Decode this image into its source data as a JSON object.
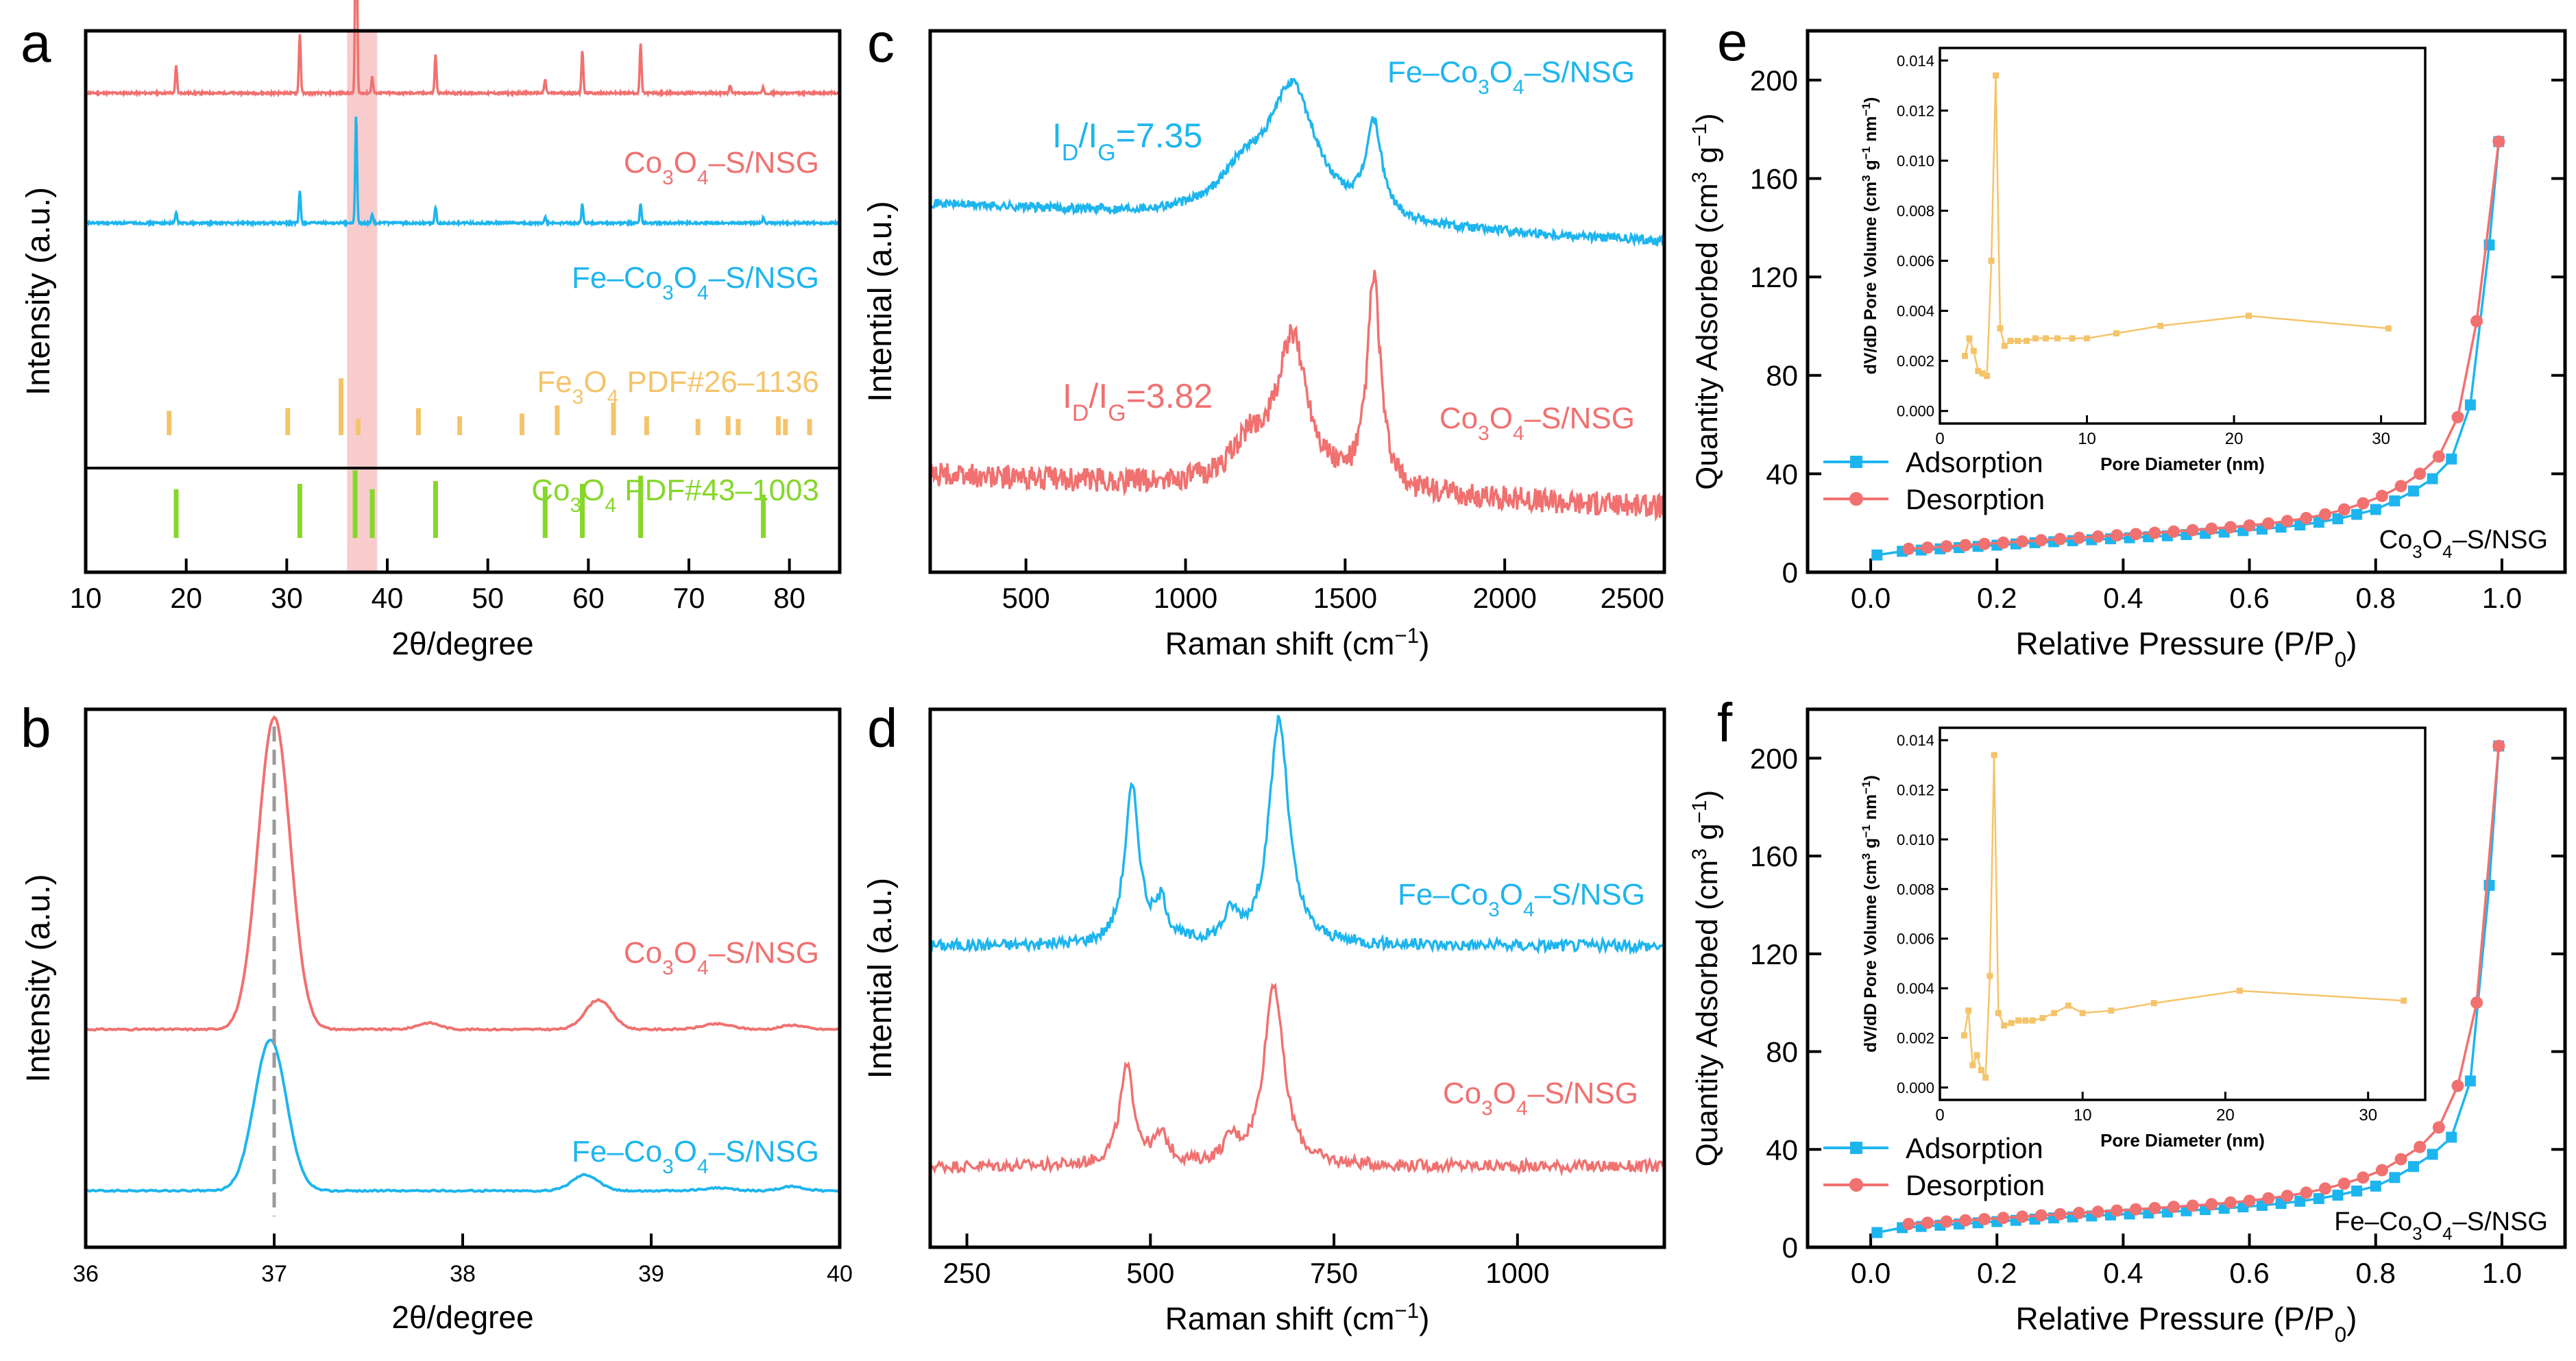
{
  "colors": {
    "red": "#F07170",
    "blue": "#1EB5EE",
    "orange": "#F4C46A",
    "green": "#86D72A",
    "highlight": "#F7C3C3",
    "inset": "#F4C46A",
    "axis": "#000000",
    "dash": "#9A9A9A"
  },
  "chart_data": [
    {
      "panel": "a",
      "type": "line",
      "title": "",
      "xlabel": "2θ/degree",
      "ylabel": "Intensity (a.u.)",
      "xlim": [
        10,
        85
      ],
      "xticks": [
        10,
        20,
        30,
        40,
        50,
        60,
        70,
        80
      ],
      "highlight_range": [
        36,
        39
      ],
      "series": [
        {
          "name": "Co3O4–S/NSG",
          "color": "red",
          "baseline": 0.885,
          "peaks": [
            [
              19.0,
              0.05
            ],
            [
              31.3,
              0.11
            ],
            [
              36.9,
              0.45
            ],
            [
              38.5,
              0.03
            ],
            [
              44.8,
              0.07
            ],
            [
              55.7,
              0.025
            ],
            [
              59.4,
              0.08
            ],
            [
              65.2,
              0.09
            ],
            [
              74.1,
              0.015
            ],
            [
              77.4,
              0.01
            ]
          ],
          "label": {
            "pre": "Co",
            "s1": "3",
            "mid": "O",
            "s2": "4",
            "post": "–S/NSG"
          }
        },
        {
          "name": "Fe–Co3O4–S/NSG",
          "color": "blue",
          "baseline": 0.645,
          "peaks": [
            [
              19.0,
              0.02
            ],
            [
              31.3,
              0.06
            ],
            [
              36.9,
              0.2
            ],
            [
              38.5,
              0.015
            ],
            [
              44.8,
              0.03
            ],
            [
              55.7,
              0.01
            ],
            [
              59.4,
              0.035
            ],
            [
              65.2,
              0.035
            ],
            [
              77.4,
              0.01
            ]
          ]
        }
      ],
      "references": [
        {
          "name": "Fe3O4 PDF#26–1136",
          "color": "orange",
          "sticks": [
            [
              18.3,
              0.045
            ],
            [
              30.1,
              0.05
            ],
            [
              35.4,
              0.105
            ],
            [
              37.1,
              0.03
            ],
            [
              43.1,
              0.05
            ],
            [
              47.2,
              0.035
            ],
            [
              53.4,
              0.04
            ],
            [
              56.9,
              0.055
            ],
            [
              62.5,
              0.06
            ],
            [
              65.8,
              0.035
            ],
            [
              70.9,
              0.03
            ],
            [
              73.9,
              0.035
            ],
            [
              74.9,
              0.03
            ],
            [
              78.9,
              0.035
            ],
            [
              79.6,
              0.03
            ],
            [
              82.0,
              0.03
            ]
          ]
        },
        {
          "name": "Co3O4 PDF#43–1003",
          "color": "green",
          "sticks": [
            [
              19.0,
              0.09
            ],
            [
              31.3,
              0.1
            ],
            [
              36.8,
              0.125
            ],
            [
              38.5,
              0.09
            ],
            [
              44.8,
              0.105
            ],
            [
              55.7,
              0.095
            ],
            [
              59.4,
              0.1
            ],
            [
              65.2,
              0.115
            ],
            [
              77.4,
              0.08
            ]
          ]
        }
      ]
    },
    {
      "panel": "b",
      "type": "line",
      "xlabel": "2θ/degree",
      "ylabel": "Intensity (a.u.)",
      "xlim": [
        36,
        40
      ],
      "xticks": [
        36,
        37,
        38,
        39,
        40
      ],
      "dashed_marker": 37.0,
      "series": [
        {
          "name": "Co3O4–S/NSG",
          "color": "red",
          "baseline": 0.405,
          "peaks": [
            [
              37.0,
              0.58,
              0.085
            ],
            [
              37.82,
              0.012,
              0.06
            ],
            [
              38.72,
              0.055,
              0.07
            ],
            [
              39.35,
              0.01,
              0.08
            ],
            [
              39.75,
              0.008,
              0.06
            ]
          ]
        },
        {
          "name": "Fe–Co3O4–S/NSG",
          "color": "blue",
          "baseline": 0.105,
          "peaks": [
            [
              36.98,
              0.28,
              0.085
            ],
            [
              38.65,
              0.03,
              0.07
            ],
            [
              39.35,
              0.005,
              0.08
            ],
            [
              39.75,
              0.008,
              0.06
            ]
          ]
        }
      ]
    },
    {
      "panel": "c",
      "type": "line",
      "xlabel": "Raman shift (cm−1)",
      "ylabel": "Intential (a.u.)",
      "xlim": [
        200,
        2500
      ],
      "xticks": [
        500,
        1000,
        1500,
        2000,
        2500
      ],
      "series": [
        {
          "name": "Fe–Co3O4–S/NSG",
          "color": "blue",
          "ratio_label": "ID/IG=7.35",
          "baseline_start": 0.68,
          "baseline_end": 0.61,
          "peaks": [
            [
              1335,
              0.24,
              90
            ],
            [
              1590,
              0.17,
              30
            ],
            [
              1180,
              0.07,
              90
            ]
          ]
        },
        {
          "name": "Co3O4–S/NSG",
          "color": "red",
          "ratio_label": "ID/IG=3.82",
          "baseline_start": 0.18,
          "baseline_end": 0.12,
          "peaks": [
            [
              1335,
              0.27,
              60
            ],
            [
              1590,
              0.39,
              25
            ],
            [
              1200,
              0.07,
              70
            ]
          ]
        }
      ]
    },
    {
      "panel": "d",
      "type": "line",
      "xlabel": "Raman shift (cm−1)",
      "ylabel": "Intential (a.u.)",
      "xlim": [
        200,
        1200
      ],
      "xticks": [
        250,
        500,
        750,
        1000
      ],
      "series": [
        {
          "name": "Fe–Co3O4–S/NSG",
          "color": "blue",
          "baseline": 0.56,
          "peaks": [
            [
              475,
              0.29,
              12
            ],
            [
              515,
              0.07,
              10
            ],
            [
              610,
              0.05,
              12
            ],
            [
              675,
              0.42,
              16
            ]
          ]
        },
        {
          "name": "Co3O4–S/NSG",
          "color": "red",
          "baseline": 0.15,
          "peaks": [
            [
              468,
              0.18,
              12
            ],
            [
              515,
              0.05,
              12
            ],
            [
              610,
              0.04,
              12
            ],
            [
              668,
              0.34,
              16
            ]
          ]
        }
      ]
    },
    {
      "panel": "e",
      "type": "line",
      "xlabel": "Relative Pressure (P/P0)",
      "ylabel": "Quantity Adsorbed (cm3 g−1)",
      "xlim": [
        -0.1,
        1.1
      ],
      "ylim": [
        0,
        220
      ],
      "xticks": [
        0.0,
        0.2,
        0.4,
        0.6,
        0.8,
        1.0
      ],
      "yticks": [
        0,
        40,
        80,
        120,
        160,
        200
      ],
      "sample_label": "Co3O4–S/NSG",
      "legend": [
        "Adsorption",
        "Desorption"
      ],
      "series": [
        {
          "name": "Adsorption",
          "color": "blue",
          "x": [
            0.01,
            0.05,
            0.08,
            0.11,
            0.14,
            0.17,
            0.2,
            0.23,
            0.26,
            0.29,
            0.32,
            0.35,
            0.38,
            0.41,
            0.44,
            0.47,
            0.5,
            0.53,
            0.56,
            0.59,
            0.62,
            0.65,
            0.68,
            0.71,
            0.74,
            0.77,
            0.8,
            0.83,
            0.86,
            0.89,
            0.92,
            0.95,
            0.98,
            0.995
          ],
          "y": [
            7,
            8.5,
            9,
            9.5,
            10,
            10.5,
            11,
            11.5,
            12,
            12.4,
            12.8,
            13.2,
            13.6,
            14,
            14.4,
            14.8,
            15.3,
            15.8,
            16.3,
            16.9,
            17.5,
            18.3,
            19.2,
            20.3,
            21.7,
            23.5,
            25.5,
            29,
            33,
            38,
            46,
            68,
            133,
            175
          ]
        },
        {
          "name": "Desorption",
          "color": "red",
          "x": [
            0.995,
            0.96,
            0.93,
            0.9,
            0.87,
            0.84,
            0.81,
            0.78,
            0.75,
            0.72,
            0.69,
            0.66,
            0.63,
            0.6,
            0.57,
            0.54,
            0.51,
            0.48,
            0.45,
            0.42,
            0.39,
            0.36,
            0.33,
            0.3,
            0.27,
            0.24,
            0.21,
            0.18,
            0.15,
            0.12,
            0.09,
            0.06
          ],
          "y": [
            175,
            102,
            63,
            47,
            40,
            35,
            31,
            28,
            25.5,
            23.5,
            22,
            20.8,
            19.8,
            19,
            18.3,
            17.7,
            17.1,
            16.5,
            16,
            15.5,
            15,
            14.5,
            14,
            13.5,
            13,
            12.5,
            12,
            11.5,
            11,
            10.5,
            10,
            9.5
          ]
        }
      ],
      "inset": {
        "xlabel": "Pore Diameter (nm)",
        "ylabel": "dV/dD Pore Volume (cm3 g−1 nm−1)",
        "xlim": [
          0,
          33
        ],
        "ylim": [
          -0.0005,
          0.0145
        ],
        "xticks": [
          0,
          10,
          20,
          30
        ],
        "yticks": [
          0.0,
          0.002,
          0.004,
          0.006,
          0.008,
          0.01,
          0.012,
          0.014
        ],
        "ytick_labels": [
          "0.000",
          "0.002",
          "0.004",
          "0.006",
          "0.008",
          "0.010",
          "0.012",
          "0.014"
        ],
        "x": [
          1.7,
          2.0,
          2.3,
          2.6,
          2.9,
          3.2,
          3.5,
          3.8,
          4.1,
          4.4,
          4.8,
          5.3,
          5.9,
          6.5,
          7.2,
          8.0,
          9.0,
          10.0,
          12.0,
          15.0,
          21.0,
          30.5
        ],
        "y": [
          0.0022,
          0.0029,
          0.0024,
          0.0016,
          0.0015,
          0.0014,
          0.006,
          0.0134,
          0.0033,
          0.0026,
          0.0028,
          0.0028,
          0.0028,
          0.0029,
          0.0029,
          0.0029,
          0.0029,
          0.0029,
          0.0031,
          0.0034,
          0.0038,
          0.0033
        ]
      }
    },
    {
      "panel": "f",
      "type": "line",
      "xlabel": "Relative Pressure (P/P0)",
      "ylabel": "Quantity Adsorbed (cm3 g−1)",
      "xlim": [
        -0.1,
        1.1
      ],
      "ylim": [
        0,
        220
      ],
      "xticks": [
        0.0,
        0.2,
        0.4,
        0.6,
        0.8,
        1.0
      ],
      "yticks": [
        0,
        40,
        80,
        120,
        160,
        200
      ],
      "sample_label": "Fe–Co3O4–S/NSG",
      "legend": [
        "Adsorption",
        "Desorption"
      ],
      "series": [
        {
          "name": "Adsorption",
          "color": "blue",
          "x": [
            0.01,
            0.05,
            0.08,
            0.11,
            0.14,
            0.17,
            0.2,
            0.23,
            0.26,
            0.29,
            0.32,
            0.35,
            0.38,
            0.41,
            0.44,
            0.47,
            0.5,
            0.53,
            0.56,
            0.59,
            0.62,
            0.65,
            0.68,
            0.71,
            0.74,
            0.77,
            0.8,
            0.83,
            0.86,
            0.89,
            0.92,
            0.95,
            0.98,
            0.995
          ],
          "y": [
            6,
            8,
            8.5,
            9,
            9.5,
            10,
            10.5,
            11,
            11.5,
            12,
            12.4,
            12.8,
            13.2,
            13.6,
            14,
            14.4,
            14.9,
            15.4,
            15.9,
            16.5,
            17.1,
            17.9,
            18.8,
            19.9,
            21.3,
            23,
            25,
            28.5,
            33,
            38,
            45,
            68,
            148,
            205
          ]
        },
        {
          "name": "Desorption",
          "color": "red",
          "x": [
            0.995,
            0.96,
            0.93,
            0.9,
            0.87,
            0.84,
            0.81,
            0.78,
            0.75,
            0.72,
            0.69,
            0.66,
            0.63,
            0.6,
            0.57,
            0.54,
            0.51,
            0.48,
            0.45,
            0.42,
            0.39,
            0.36,
            0.33,
            0.3,
            0.27,
            0.24,
            0.21,
            0.18,
            0.15,
            0.12,
            0.09,
            0.06
          ],
          "y": [
            205,
            100,
            66,
            49,
            41,
            36,
            31.5,
            28.5,
            26,
            24,
            22.3,
            21,
            20,
            19,
            18.3,
            17.6,
            17,
            16.5,
            16,
            15.5,
            15,
            14.5,
            14,
            13.5,
            13,
            12.5,
            12,
            11.5,
            11,
            10.5,
            10,
            9.5
          ]
        }
      ],
      "inset": {
        "xlabel": "Pore Diameter (nm)",
        "ylabel": "dV/dD Pore Volume (cm3 g−1 nm−1)",
        "xlim": [
          0,
          34
        ],
        "ylim": [
          -0.0005,
          0.0145
        ],
        "xticks": [
          0,
          10,
          20,
          30
        ],
        "yticks": [
          0.0,
          0.002,
          0.004,
          0.006,
          0.008,
          0.01,
          0.012,
          0.014
        ],
        "ytick_labels": [
          "0.000",
          "0.002",
          "0.004",
          "0.006",
          "0.008",
          "0.010",
          "0.012",
          "0.014"
        ],
        "x": [
          1.7,
          2.0,
          2.3,
          2.6,
          2.9,
          3.2,
          3.5,
          3.8,
          4.1,
          4.5,
          5.0,
          5.5,
          6.0,
          6.5,
          7.2,
          8.0,
          9.0,
          10.0,
          12.0,
          15.0,
          21.0,
          32.5
        ],
        "y": [
          0.0021,
          0.0031,
          0.0009,
          0.0013,
          0.0007,
          0.0004,
          0.0045,
          0.0134,
          0.003,
          0.0025,
          0.0026,
          0.0027,
          0.0027,
          0.0027,
          0.0028,
          0.003,
          0.0033,
          0.003,
          0.0031,
          0.0034,
          0.0039,
          0.0035
        ]
      }
    }
  ]
}
